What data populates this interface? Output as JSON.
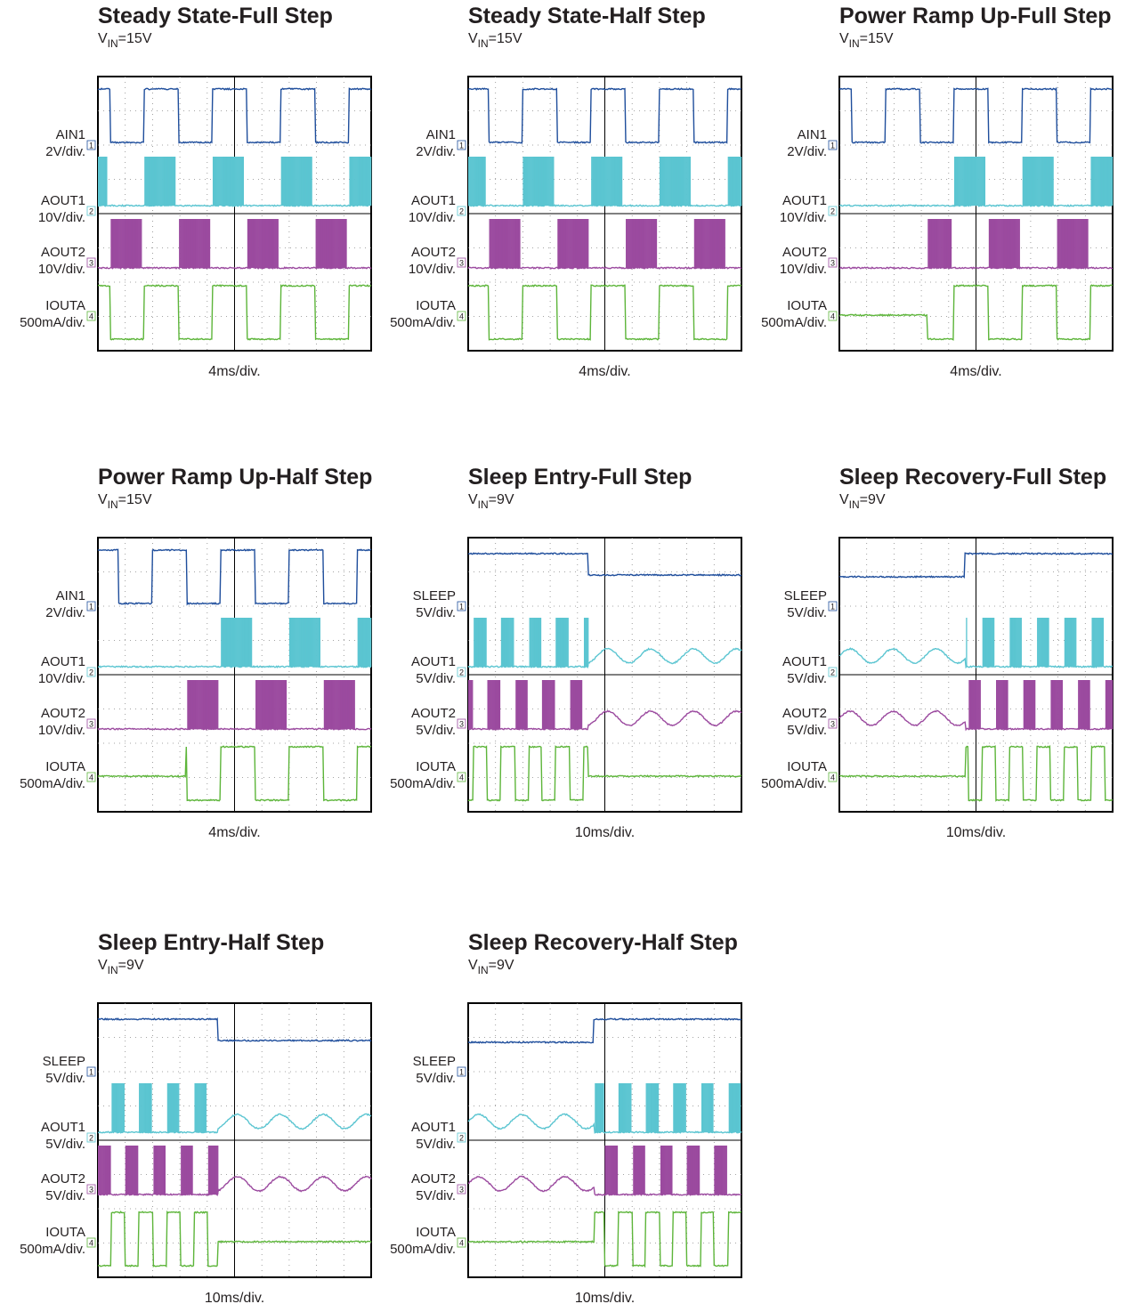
{
  "panels": [
    {
      "title": "Steady State-Full Step",
      "vin": {
        "symbol": "V",
        "sub": "IN",
        "value": "=15V"
      },
      "channels": [
        {
          "name": "AIN1",
          "scale": "2V/div.",
          "marker": "1"
        },
        {
          "name": "AOUT1",
          "scale": "10V/div.",
          "marker": "2"
        },
        {
          "name": "AOUT2",
          "scale": "10V/div.",
          "marker": "3"
        },
        {
          "name": "IOUTA",
          "scale": "500mA/div.",
          "marker": "4"
        }
      ],
      "timebase": "4ms/div."
    },
    {
      "title": "Steady State-Half Step",
      "vin": {
        "symbol": "V",
        "sub": "IN",
        "value": "=15V"
      },
      "channels": [
        {
          "name": "AIN1",
          "scale": "2V/div.",
          "marker": "1"
        },
        {
          "name": "AOUT1",
          "scale": "10V/div.",
          "marker": "2"
        },
        {
          "name": "AOUT2",
          "scale": "10V/div.",
          "marker": "3"
        },
        {
          "name": "IOUTA",
          "scale": "500mA/div.",
          "marker": "4"
        }
      ],
      "timebase": "4ms/div."
    },
    {
      "title": "Power Ramp Up-Full Step",
      "vin": {
        "symbol": "V",
        "sub": "IN",
        "value": "=15V"
      },
      "channels": [
        {
          "name": "AIN1",
          "scale": "2V/div.",
          "marker": "1"
        },
        {
          "name": "AOUT1",
          "scale": "10V/div.",
          "marker": "2"
        },
        {
          "name": "AOUT2",
          "scale": "10V/div.",
          "marker": "3"
        },
        {
          "name": "IOUTA",
          "scale": "500mA/div.",
          "marker": "4"
        }
      ],
      "timebase": "4ms/div."
    },
    {
      "title": "Power Ramp Up-Half Step",
      "vin": {
        "symbol": "V",
        "sub": "IN",
        "value": "=15V"
      },
      "channels": [
        {
          "name": "AIN1",
          "scale": "2V/div.",
          "marker": "1"
        },
        {
          "name": "AOUT1",
          "scale": "10V/div.",
          "marker": "2"
        },
        {
          "name": "AOUT2",
          "scale": "10V/div.",
          "marker": "3"
        },
        {
          "name": "IOUTA",
          "scale": "500mA/div.",
          "marker": "4"
        }
      ],
      "timebase": "4ms/div."
    },
    {
      "title": "Sleep Entry-Full Step",
      "vin": {
        "symbol": "V",
        "sub": "IN",
        "value": "=9V"
      },
      "channels": [
        {
          "name": "SLEEP",
          "scale": "5V/div.",
          "marker": "1"
        },
        {
          "name": "AOUT1",
          "scale": "5V/div.",
          "marker": "2"
        },
        {
          "name": "AOUT2",
          "scale": "5V/div.",
          "marker": "3"
        },
        {
          "name": "IOUTA",
          "scale": "500mA/div.",
          "marker": "4"
        }
      ],
      "timebase": "10ms/div."
    },
    {
      "title": "Sleep Recovery-Full Step",
      "vin": {
        "symbol": "V",
        "sub": "IN",
        "value": "=9V"
      },
      "channels": [
        {
          "name": "SLEEP",
          "scale": "5V/div.",
          "marker": "1"
        },
        {
          "name": "AOUT1",
          "scale": "5V/div.",
          "marker": "2"
        },
        {
          "name": "AOUT2",
          "scale": "5V/div.",
          "marker": "3"
        },
        {
          "name": "IOUTA",
          "scale": "500mA/div.",
          "marker": "4"
        }
      ],
      "timebase": "10ms/div."
    },
    {
      "title": "Sleep Entry-Half Step",
      "vin": {
        "symbol": "V",
        "sub": "IN",
        "value": "=9V"
      },
      "channels": [
        {
          "name": "SLEEP",
          "scale": "5V/div.",
          "marker": "1"
        },
        {
          "name": "AOUT1",
          "scale": "5V/div.",
          "marker": "2"
        },
        {
          "name": "AOUT2",
          "scale": "5V/div.",
          "marker": "3"
        },
        {
          "name": "IOUTA",
          "scale": "500mA/div.",
          "marker": "4"
        }
      ],
      "timebase": "10ms/div."
    },
    {
      "title": "Sleep Recovery-Half Step",
      "vin": {
        "symbol": "V",
        "sub": "IN",
        "value": "=9V"
      },
      "channels": [
        {
          "name": "SLEEP",
          "scale": "5V/div.",
          "marker": "1"
        },
        {
          "name": "AOUT1",
          "scale": "5V/div.",
          "marker": "2"
        },
        {
          "name": "AOUT2",
          "scale": "5V/div.",
          "marker": "3"
        },
        {
          "name": "IOUTA",
          "scale": "500mA/div.",
          "marker": "4"
        }
      ],
      "timebase": "10ms/div."
    }
  ]
}
